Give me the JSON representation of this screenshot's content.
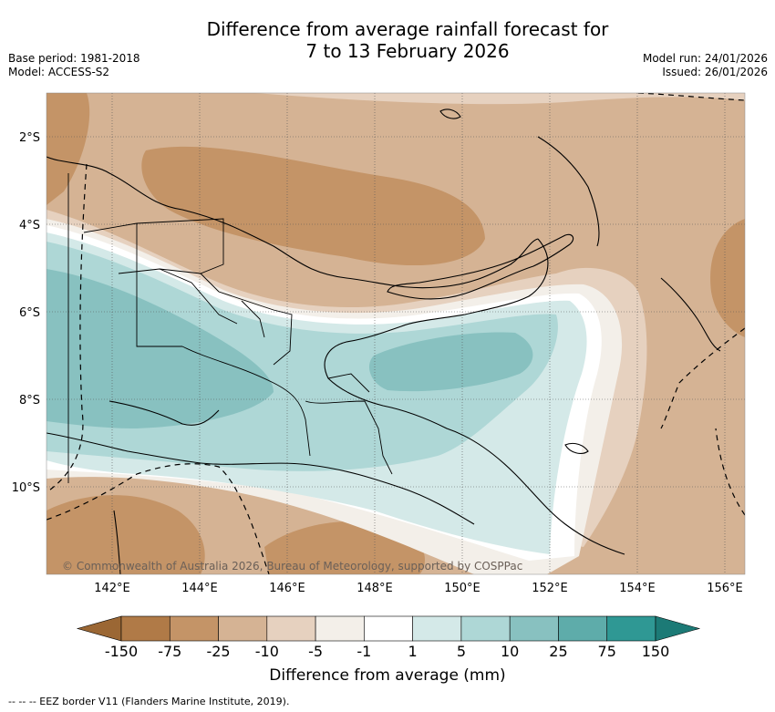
{
  "title_line1": "Difference from average rainfall forecast for",
  "title_line2": "7 to 13 February 2026",
  "base_period": "Base period: 1981-2018",
  "model": "Model: ACCESS-S2",
  "model_run": "Model run: 24/01/2026",
  "issued": "Issued: 26/01/2026",
  "credit": "© Commonwealth of Australia 2026, Bureau of Meteorology, supported by COSPPac",
  "map": {
    "lat_labels": [
      "2°S",
      "4°S",
      "6°S",
      "8°S",
      "10°S"
    ],
    "lon_labels": [
      "142°E",
      "144°E",
      "146°E",
      "148°E",
      "150°E",
      "152°E",
      "154°E",
      "156°E"
    ]
  },
  "colorbar": {
    "label": "Difference from average (mm)",
    "ticks": [
      "-150",
      "-75",
      "-25",
      "-10",
      "-5",
      "-1",
      "1",
      "5",
      "10",
      "25",
      "75",
      "150"
    ],
    "colors": [
      "#9b6734",
      "#b07a47",
      "#c49467",
      "#d5b394",
      "#e6d1bf",
      "#f3efe9",
      "#ffffff",
      "#d4e9e8",
      "#aed7d6",
      "#88c1c0",
      "#5eacaa",
      "#2f9894",
      "#1c7a76"
    ]
  },
  "footnote": "--  --  -- EEZ border V11 (Flanders Marine Institute, 2019)."
}
